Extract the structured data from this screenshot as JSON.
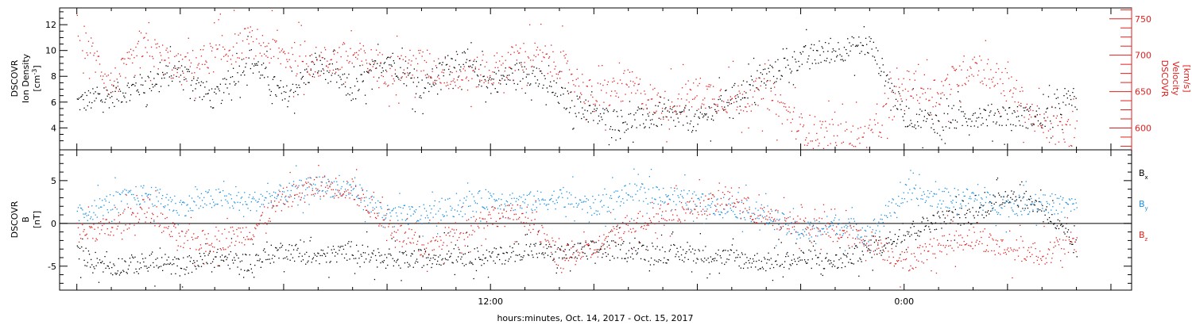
{
  "colors": {
    "black": "#000000",
    "red": "#e0201e",
    "blue": "#1a8fe0"
  },
  "x_axis": {
    "label": "hours:minutes, Oct. 14, 2017 - Oct. 15, 2017",
    "tick_labels": [
      "12:00",
      "0:00"
    ],
    "tick_hours": [
      12,
      24
    ],
    "range_hours": [
      -0.5,
      30.6
    ]
  },
  "chart_data": [
    {
      "type": "scatter",
      "panel": "density_velocity",
      "ylabel_left": [
        "DSCOVR",
        "Ion Density",
        "[cm^-3]"
      ],
      "ylabel_right": [
        "DSCOVR",
        "Velocity",
        "[km/s]"
      ],
      "y_left_lim": [
        2.3,
        13.3
      ],
      "y_left_ticks": [
        4,
        6,
        8,
        10,
        12
      ],
      "y_right_lim": [
        570,
        765
      ],
      "y_right_ticks": [
        600,
        650,
        700,
        750
      ],
      "series": [
        {
          "name": "Ion Density",
          "axis": "left",
          "color": "black",
          "x": [
            0,
            1,
            2,
            3,
            4,
            5,
            6,
            7,
            8,
            9,
            10,
            11,
            12,
            13,
            14,
            15,
            16,
            17,
            18,
            19,
            20,
            21,
            22,
            23,
            24,
            25,
            26,
            27,
            28,
            29
          ],
          "y": [
            6.0,
            6.5,
            7.5,
            8.5,
            6.2,
            9.5,
            6.3,
            9.0,
            6.8,
            9.5,
            7.0,
            9.5,
            7.5,
            8.5,
            6.5,
            5.0,
            4.5,
            5.0,
            4.5,
            6.5,
            8.0,
            9.5,
            10.0,
            10.5,
            5.0,
            4.5,
            5.0,
            5.0,
            4.8,
            6.5
          ]
        },
        {
          "name": "Velocity",
          "axis": "right",
          "color": "red",
          "x": [
            0,
            1,
            2,
            3,
            4,
            5,
            6,
            7,
            8,
            9,
            10,
            11,
            12,
            13,
            14,
            15,
            16,
            17,
            18,
            19,
            20,
            21,
            22,
            23,
            24,
            25,
            26,
            27,
            28,
            29
          ],
          "y": [
            735,
            660,
            710,
            680,
            700,
            720,
            700,
            690,
            700,
            680,
            690,
            670,
            680,
            700,
            690,
            640,
            660,
            630,
            650,
            640,
            650,
            600,
            590,
            585,
            660,
            650,
            690,
            660,
            600,
            595
          ]
        }
      ]
    },
    {
      "type": "scatter",
      "panel": "magnetic_field",
      "ylabel_left": [
        "DSCOVR",
        "B",
        "[nT]"
      ],
      "y_lim": [
        -7.8,
        8.6
      ],
      "y_ticks": [
        -5,
        0,
        5
      ],
      "zero_line": 0,
      "legend_position": "right",
      "series": [
        {
          "name": "Bx",
          "color": "black",
          "x": [
            0,
            1,
            2,
            3,
            4,
            5,
            6,
            7,
            8,
            9,
            10,
            11,
            12,
            13,
            14,
            15,
            16,
            17,
            18,
            19,
            20,
            21,
            22,
            23,
            24,
            25,
            26,
            27,
            28,
            29
          ],
          "y": [
            -3.5,
            -5.0,
            -4.5,
            -5.0,
            -4.0,
            -4.5,
            -3.0,
            -4.0,
            -3.0,
            -4.5,
            -4.0,
            -3.5,
            -4.0,
            -3.0,
            -3.5,
            -3.0,
            -3.0,
            -3.5,
            -3.5,
            -4.0,
            -4.5,
            -4.0,
            -4.5,
            -3.0,
            -1.0,
            0.5,
            1.0,
            3.5,
            2.0,
            -3.0
          ]
        },
        {
          "name": "By",
          "color": "blue",
          "x": [
            0,
            1,
            2,
            3,
            4,
            5,
            6,
            7,
            8,
            9,
            10,
            11,
            12,
            13,
            14,
            15,
            16,
            17,
            18,
            19,
            20,
            21,
            22,
            23,
            24,
            25,
            26,
            27,
            28,
            29
          ],
          "y": [
            1.0,
            2.5,
            3.5,
            2.0,
            3.0,
            2.5,
            3.5,
            4.5,
            4.0,
            1.0,
            1.0,
            2.0,
            3.0,
            2.5,
            3.0,
            2.0,
            3.5,
            3.5,
            2.5,
            2.0,
            1.0,
            -1.0,
            0.0,
            -1.0,
            3.5,
            3.0,
            3.0,
            2.0,
            2.5,
            2.0
          ]
        },
        {
          "name": "Bz",
          "color": "red",
          "x": [
            0,
            1,
            2,
            3,
            4,
            5,
            6,
            7,
            8,
            9,
            10,
            11,
            12,
            13,
            14,
            15,
            16,
            17,
            18,
            19,
            20,
            21,
            22,
            23,
            24,
            25,
            26,
            27,
            28,
            29
          ],
          "y": [
            -1.0,
            -0.5,
            2.0,
            -2.0,
            -2.0,
            -1.0,
            3.0,
            4.5,
            4.0,
            0.0,
            -3.0,
            -1.0,
            1.0,
            1.0,
            -4.0,
            -3.0,
            0.0,
            1.0,
            2.0,
            3.0,
            0.5,
            0.0,
            -1.0,
            -2.0,
            -4.5,
            -2.5,
            -1.5,
            -3.0,
            -3.5,
            -2.0
          ]
        }
      ],
      "legend": [
        {
          "label": "B",
          "sub": "x",
          "color": "black"
        },
        {
          "label": "B",
          "sub": "y",
          "color": "blue"
        },
        {
          "label": "B",
          "sub": "z",
          "color": "red"
        }
      ]
    }
  ]
}
